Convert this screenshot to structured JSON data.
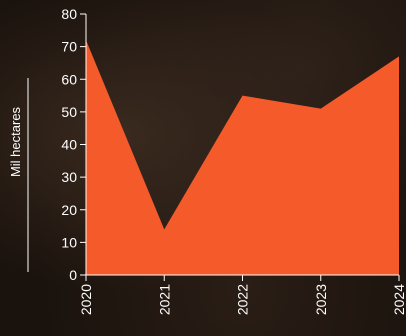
{
  "chart_data": {
    "type": "area",
    "x": [
      "2020",
      "2021",
      "2022",
      "2023",
      "2024"
    ],
    "series": [
      {
        "values": [
          72,
          14,
          55,
          51,
          67
        ]
      }
    ],
    "ylabel": "Mil hectares",
    "xlabel": "",
    "title": "",
    "ylim": [
      0,
      80
    ],
    "yticks": [
      0,
      10,
      20,
      30,
      40,
      50,
      60,
      70,
      80
    ],
    "grid": false,
    "colors": {
      "area": "#f45a2a",
      "axis": "#ffffff",
      "text": "#ffffff"
    }
  }
}
